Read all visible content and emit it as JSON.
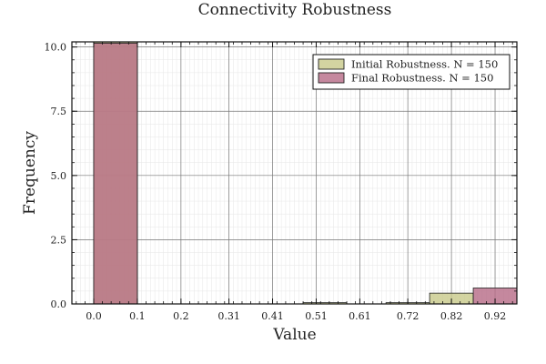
{
  "chart_data": {
    "type": "bar",
    "title": "Connectivity Robustness",
    "xlabel": "Value",
    "ylabel": "Frequency",
    "xlim": [
      -0.05,
      0.97
    ],
    "ylim": [
      0,
      10.2
    ],
    "x_ticks": [
      "0.0",
      "0.1",
      "0.2",
      "0.31",
      "0.41",
      "0.51",
      "0.61",
      "0.72",
      "0.82",
      "0.92"
    ],
    "x_tick_values": [
      0.0,
      0.1,
      0.2,
      0.31,
      0.41,
      0.51,
      0.61,
      0.72,
      0.82,
      0.92
    ],
    "y_ticks": [
      "0.0",
      "2.5",
      "5.0",
      "7.5",
      "10.0"
    ],
    "y_tick_values": [
      0.0,
      2.5,
      5.0,
      7.5,
      10.0
    ],
    "grid": true,
    "legend_position": "top-right",
    "series": [
      {
        "name": "Initial Robustness. N = 150",
        "color": "#c8c98a",
        "bins": [
          {
            "start": 0.0,
            "end": 0.1,
            "value": 10.2
          },
          {
            "start": 0.48,
            "end": 0.58,
            "value": 0.05
          },
          {
            "start": 0.67,
            "end": 0.77,
            "value": 0.05
          },
          {
            "start": 0.77,
            "end": 0.87,
            "value": 0.42
          }
        ]
      },
      {
        "name": "Final Robustness. N = 150",
        "color": "#b76a86",
        "bins": [
          {
            "start": 0.0,
            "end": 0.1,
            "value": 10.15
          },
          {
            "start": 0.87,
            "end": 0.97,
            "value": 0.62
          }
        ]
      }
    ]
  }
}
